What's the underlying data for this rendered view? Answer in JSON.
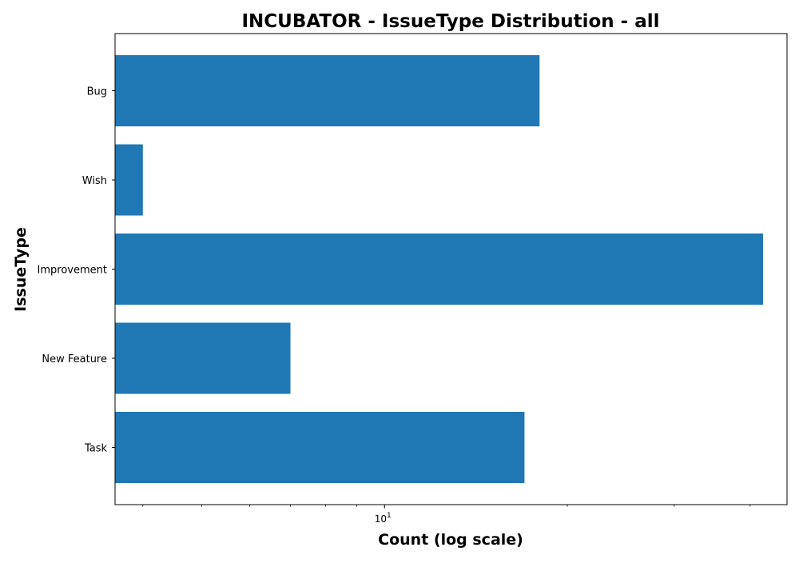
{
  "chart_data": {
    "type": "bar",
    "orientation": "horizontal",
    "title": "INCUBATOR - IssueType Distribution - all",
    "xlabel": "Count (log scale)",
    "ylabel": "IssueType",
    "x_scale": "log",
    "xlim": [
      3.6,
      46
    ],
    "grid": false,
    "legend": "none",
    "bar_color": "#1f77b4",
    "categories": [
      "Bug",
      "Wish",
      "Improvement",
      "New Feature",
      "Task"
    ],
    "values": [
      18,
      4,
      42,
      7,
      17
    ],
    "x_ticks": [
      {
        "value": 10,
        "base": "10",
        "exponent": "1"
      }
    ],
    "x_minor_ticks": [
      4,
      5,
      6,
      7,
      8,
      9,
      20,
      30,
      40
    ]
  }
}
